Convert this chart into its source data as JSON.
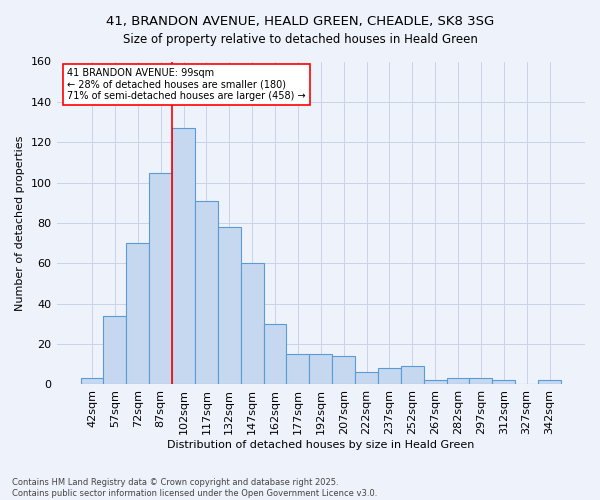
{
  "title_line1": "41, BRANDON AVENUE, HEALD GREEN, CHEADLE, SK8 3SG",
  "title_line2": "Size of property relative to detached houses in Heald Green",
  "xlabel": "Distribution of detached houses by size in Heald Green",
  "ylabel": "Number of detached properties",
  "categories": [
    "42sqm",
    "57sqm",
    "72sqm",
    "87sqm",
    "102sqm",
    "117sqm",
    "132sqm",
    "147sqm",
    "162sqm",
    "177sqm",
    "192sqm",
    "207sqm",
    "222sqm",
    "237sqm",
    "252sqm",
    "267sqm",
    "282sqm",
    "297sqm",
    "312sqm",
    "327sqm",
    "342sqm"
  ],
  "values": [
    3,
    34,
    70,
    105,
    127,
    91,
    78,
    60,
    30,
    15,
    15,
    14,
    6,
    8,
    9,
    2,
    3,
    3,
    2,
    0,
    2
  ],
  "bar_color": "#c5d8f0",
  "bar_edge_color": "#5b9bd5",
  "grid_color": "#c8d4e8",
  "background_color": "#eef2fb",
  "red_line_index": 3.5,
  "annotation_text_line1": "41 BRANDON AVENUE: 99sqm",
  "annotation_text_line2": "← 28% of detached houses are smaller (180)",
  "annotation_text_line3": "71% of semi-detached houses are larger (458) →",
  "annotation_box_color": "white",
  "annotation_box_edge": "red",
  "footer_line1": "Contains HM Land Registry data © Crown copyright and database right 2025.",
  "footer_line2": "Contains public sector information licensed under the Open Government Licence v3.0.",
  "ylim": [
    0,
    160
  ],
  "yticks": [
    0,
    20,
    40,
    60,
    80,
    100,
    120,
    140,
    160
  ]
}
